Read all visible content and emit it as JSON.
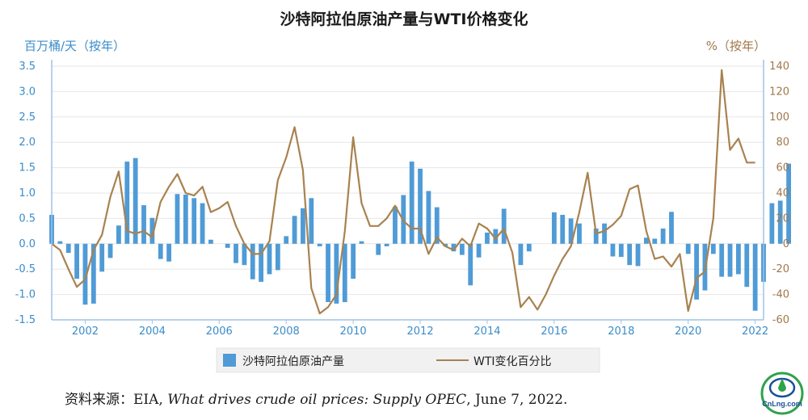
{
  "chart_data": {
    "type": "bar+line",
    "title": "沙特阿拉伯原油产量与WTI价格变化",
    "ylabel_left": "百万桶/天（按年）",
    "ylabel_right": "%（按年）",
    "ylim_left": [
      -1.5,
      3.5
    ],
    "yticks_left": [
      "-1.5",
      "-1.0",
      "-0.5",
      "0.0",
      "0.5",
      "1.0",
      "1.5",
      "2.0",
      "2.5",
      "3.0",
      "3.5"
    ],
    "ylim_right": [
      -60,
      140
    ],
    "yticks_right": [
      "-60",
      "-40",
      "-20",
      "0",
      "20",
      "40",
      "60",
      "80",
      "100",
      "120",
      "140"
    ],
    "xlim": [
      2001.0,
      2022.25
    ],
    "xticks": [
      "2002",
      "2004",
      "2006",
      "2008",
      "2010",
      "2012",
      "2014",
      "2016",
      "2018",
      "2020",
      "2022"
    ],
    "x_tick_positions": [
      2002,
      2004,
      2006,
      2008,
      2010,
      2012,
      2014,
      2016,
      2018,
      2020,
      2022
    ],
    "bar_start": 2001.0,
    "bar_step": 0.25,
    "legend": {
      "placement": "bottom-center"
    },
    "colors": {
      "bars": "#4f9bd6",
      "line": "#a8824f",
      "axis": "#9dc3e6"
    },
    "series": [
      {
        "name": "沙特阿拉伯原油产量",
        "kind": "bar",
        "axis": "left",
        "values": [
          0.57,
          0.05,
          -0.18,
          -0.69,
          -1.2,
          -1.18,
          -0.55,
          -0.28,
          0.36,
          1.62,
          1.69,
          0.76,
          0.51,
          -0.3,
          -0.35,
          0.98,
          0.97,
          0.9,
          0.8,
          0.08,
          0.0,
          -0.08,
          -0.38,
          -0.42,
          -0.7,
          -0.75,
          -0.6,
          -0.52,
          0.15,
          0.55,
          0.7,
          0.9,
          -0.05,
          -1.15,
          -1.18,
          -1.15,
          -0.69,
          0.05,
          0.0,
          -0.22,
          -0.05,
          0.73,
          0.96,
          1.62,
          1.48,
          1.04,
          0.72,
          -0.05,
          -0.15,
          -0.22,
          -0.82,
          -0.27,
          0.22,
          0.29,
          0.69,
          0.0,
          -0.42,
          -0.15,
          0.0,
          0.0,
          0.62,
          0.57,
          0.5,
          0.4,
          0.0,
          0.3,
          0.4,
          -0.25,
          -0.26,
          -0.42,
          -0.44,
          0.12,
          0.1,
          0.3,
          0.63,
          0.0,
          -0.2,
          -1.1,
          -0.92,
          -0.2,
          -0.65,
          -0.65,
          -0.6,
          -0.85,
          -1.32,
          -0.75,
          0.8,
          0.85,
          1.58
        ]
      },
      {
        "name": "WTI变化百分比",
        "kind": "line",
        "axis": "right",
        "x": [
          2001.0,
          2001.25,
          2001.5,
          2001.75,
          2002.0,
          2002.25,
          2002.5,
          2002.75,
          2003.0,
          2003.25,
          2003.5,
          2003.75,
          2004.0,
          2004.25,
          2004.5,
          2004.75,
          2005.0,
          2005.25,
          2005.5,
          2005.75,
          2006.0,
          2006.25,
          2006.5,
          2006.75,
          2007.0,
          2007.25,
          2007.5,
          2007.75,
          2008.0,
          2008.25,
          2008.5,
          2008.75,
          2009.0,
          2009.25,
          2009.5,
          2009.75,
          2010.0,
          2010.25,
          2010.5,
          2010.75,
          2011.0,
          2011.25,
          2011.5,
          2011.75,
          2012.0,
          2012.25,
          2012.5,
          2012.75,
          2013.0,
          2013.25,
          2013.5,
          2013.75,
          2014.0,
          2014.25,
          2014.5,
          2014.75,
          2015.0,
          2015.25,
          2015.5,
          2015.75,
          2016.0,
          2016.25,
          2016.5,
          2016.75,
          2017.0,
          2017.25,
          2017.5,
          2017.75,
          2018.0,
          2018.25,
          2018.5,
          2018.75,
          2019.0,
          2019.25,
          2019.5,
          2019.75,
          2020.0,
          2020.25,
          2020.5,
          2020.75,
          2021.0,
          2021.25,
          2021.5,
          2021.75,
          2022.0
        ],
        "values": [
          0,
          -5,
          -20,
          -34,
          -28,
          -5,
          7,
          37,
          57,
          10,
          8,
          10,
          5,
          33,
          45,
          55,
          40,
          38,
          45,
          25,
          28,
          33,
          14,
          0,
          -8,
          -8,
          2,
          50,
          68,
          92,
          58,
          -35,
          -55,
          -50,
          -40,
          10,
          84,
          32,
          14,
          14,
          20,
          30,
          18,
          12,
          12,
          -8,
          5,
          -2,
          -5,
          4,
          -2,
          16,
          12,
          4,
          12,
          -7,
          -50,
          -42,
          -52,
          -40,
          -25,
          -12,
          -2,
          25,
          56,
          8,
          10,
          15,
          22,
          43,
          46,
          10,
          -12,
          -10,
          -18,
          -8,
          -53,
          -27,
          -22,
          20,
          137,
          74,
          83,
          64,
          64
        ]
      }
    ],
    "source_prefix": "资料来源：",
    "source_rest_1": "EIA, ",
    "source_title": "What drives crude oil prices: Supply OPEC",
    "source_rest_2": ", June 7, 2022.",
    "watermark": "CnLng.com"
  }
}
